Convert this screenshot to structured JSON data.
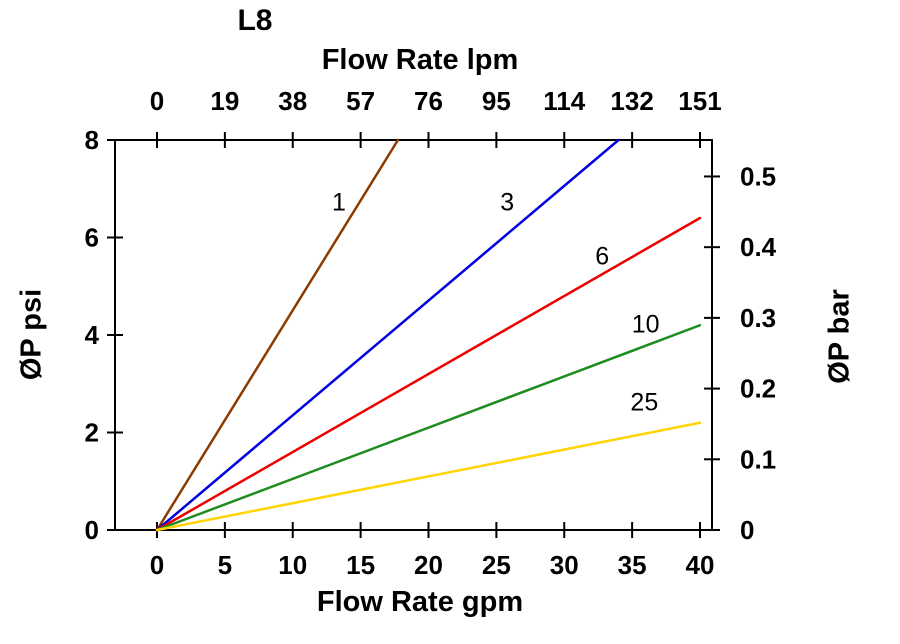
{
  "chart_data": {
    "type": "line",
    "title": "L8",
    "background": "#FFFFFF",
    "grid": false,
    "top_axis": {
      "label": "Flow Rate lpm",
      "ticks": [
        0,
        19,
        38,
        57,
        76,
        95,
        114,
        132,
        151
      ]
    },
    "bottom_axis": {
      "label": "Flow Rate gpm",
      "ticks": [
        0,
        5,
        10,
        15,
        20,
        25,
        30,
        35,
        40
      ],
      "range": [
        0,
        40
      ]
    },
    "left_axis": {
      "label": "ØP psi",
      "ticks": [
        0,
        2,
        4,
        6,
        8
      ],
      "range": [
        0,
        8
      ]
    },
    "right_axis": {
      "label": "ØP bar",
      "ticks": [
        0,
        0.1,
        0.2,
        0.3,
        0.4,
        0.5
      ],
      "psi_per_bar": 14.504
    },
    "axis_color": "#000000",
    "series": [
      {
        "name": "1",
        "color": "#8B3A00",
        "points": [
          [
            0,
            0
          ],
          [
            17.75,
            8
          ]
        ],
        "label_at": [
          13.4,
          6.55
        ]
      },
      {
        "name": "3",
        "color": "#0000E0",
        "points": [
          [
            0,
            0
          ],
          [
            34,
            8
          ]
        ],
        "label_at": [
          25.8,
          6.55
        ]
      },
      {
        "name": "6",
        "color": "#EE0000",
        "points": [
          [
            0,
            0
          ],
          [
            40,
            6.4
          ]
        ],
        "label_at": [
          32.8,
          5.45
        ]
      },
      {
        "name": "10",
        "color": "#1E8C1E",
        "points": [
          [
            0,
            0
          ],
          [
            40,
            4.2
          ]
        ],
        "label_at": [
          36.0,
          4.05
        ]
      },
      {
        "name": "25",
        "color": "#FFD400",
        "points": [
          [
            0,
            0
          ],
          [
            40,
            2.2
          ]
        ],
        "label_at": [
          35.9,
          2.45
        ]
      }
    ]
  }
}
